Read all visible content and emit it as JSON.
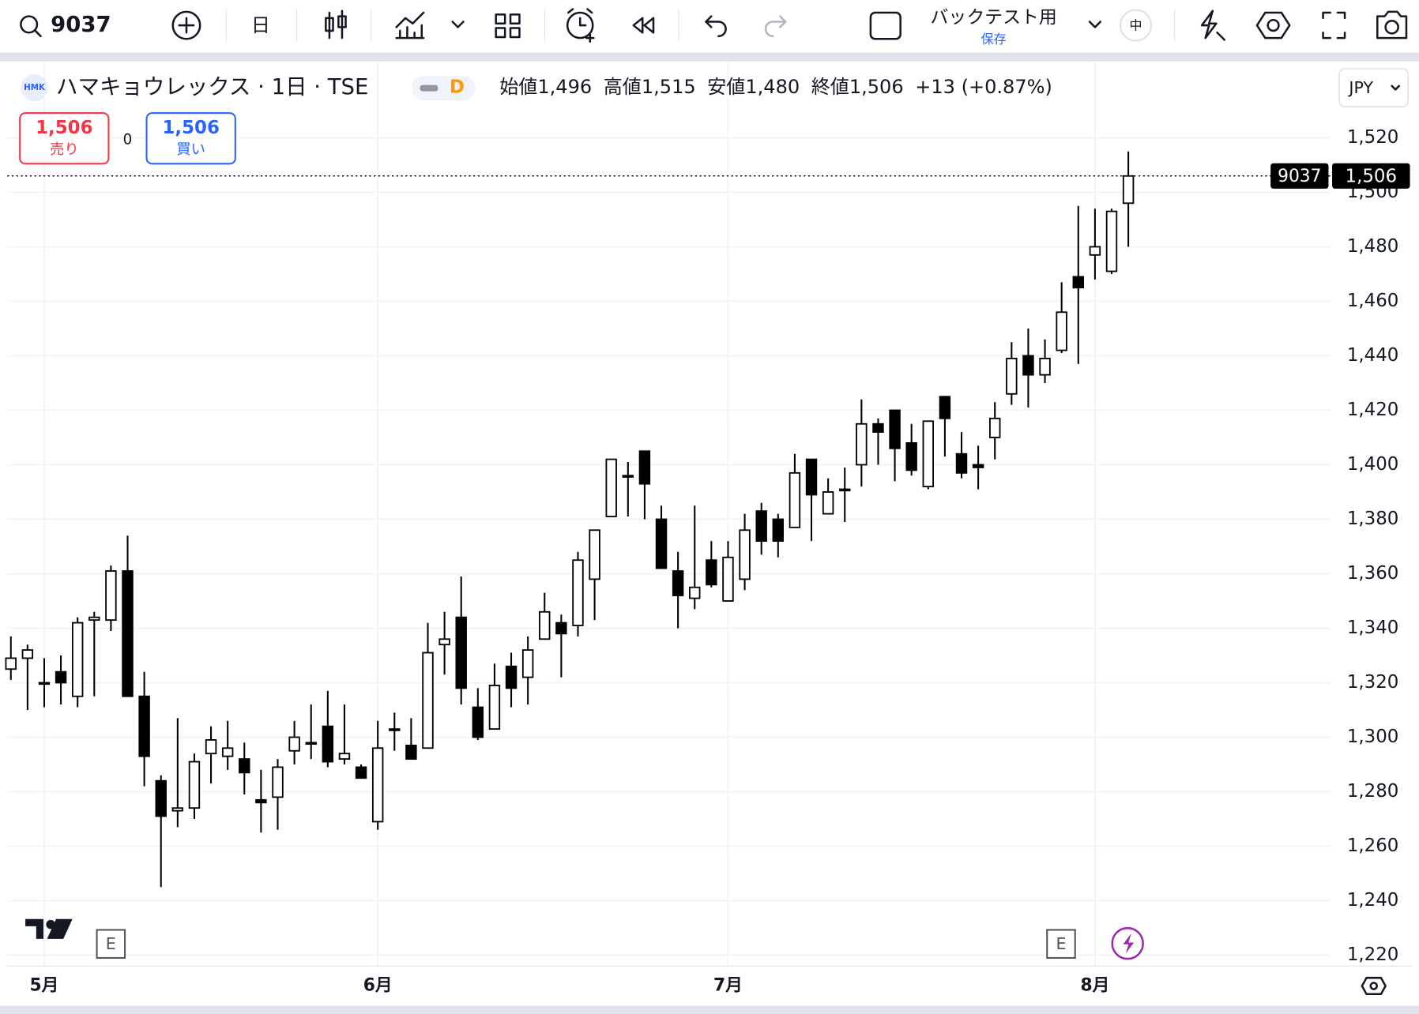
{
  "toolbar": {
    "symbol": "9037",
    "interval": "日",
    "layout_name": "バックテスト用",
    "layout_status": "保存",
    "badge": "中"
  },
  "legend": {
    "title": "ハマキョウレックス · 1日 · TSE",
    "flag": "D",
    "ohlc": [
      {
        "label": "始値",
        "value": "1,496"
      },
      {
        "label": "高値",
        "value": "1,515"
      },
      {
        "label": "安値",
        "value": "1,480"
      },
      {
        "label": "終値",
        "value": "1,506"
      }
    ],
    "change": "+13 (+0.87%)"
  },
  "trade": {
    "sell_price": "1,506",
    "sell_label": "売り",
    "spread": "0",
    "buy_price": "1,506",
    "buy_label": "買い"
  },
  "currency": "JPY",
  "events": [
    "E",
    "E"
  ],
  "chart_data": {
    "type": "candlestick",
    "categories": [
      null,
      null,
      "5月",
      null,
      null,
      null,
      null,
      null,
      null,
      null,
      null,
      null,
      null,
      null,
      null,
      null,
      null,
      null,
      null,
      null,
      null,
      null,
      "6月",
      null,
      null,
      null,
      null,
      null,
      null,
      null,
      null,
      null,
      null,
      null,
      null,
      null,
      null,
      null,
      null,
      null,
      null,
      null,
      null,
      "7月",
      null,
      null,
      null,
      null,
      null,
      null,
      null,
      null,
      null,
      null,
      null,
      null,
      null,
      null,
      null,
      null,
      null,
      null,
      null,
      null,
      null,
      "8月",
      null,
      null
    ],
    "series": [
      {
        "open": [
          1325,
          1329,
          1320,
          1324,
          1315,
          1343,
          1343,
          1361,
          1315,
          1284,
          1273,
          1274,
          1294,
          1293,
          1292,
          1277,
          1278,
          1295,
          1298,
          1304,
          1292,
          1289,
          1269,
          1303,
          1297,
          1296,
          1334,
          1344,
          1311,
          1303,
          1326,
          1322,
          1336,
          1342,
          1341,
          1358,
          1381,
          1396,
          1405,
          1380,
          1361,
          1351,
          1365,
          1350,
          1358,
          1383,
          1380,
          1377,
          1402,
          1382,
          1391,
          1400,
          1415,
          1420,
          1408,
          1392,
          1425,
          1404,
          1400,
          1410,
          1426,
          1440,
          1433,
          1442,
          1469,
          1477,
          1471,
          1496
        ],
        "high": [
          1337,
          1334,
          1329,
          1330,
          1344,
          1346,
          1363,
          1374,
          1324,
          1286,
          1307,
          1294,
          1304,
          1306,
          1298,
          1288,
          1292,
          1306,
          1312,
          1317,
          1312,
          1290,
          1306,
          1309,
          1307,
          1342,
          1346,
          1359,
          1318,
          1327,
          1331,
          1337,
          1353,
          1345,
          1368,
          1376,
          1402,
          1401,
          1405,
          1385,
          1368,
          1385,
          1372,
          1372,
          1382,
          1386,
          1382,
          1404,
          1402,
          1395,
          1399,
          1424,
          1417,
          1420,
          1415,
          1416,
          1425,
          1412,
          1407,
          1423,
          1445,
          1450,
          1446,
          1467,
          1495,
          1494,
          1494,
          1515
        ],
        "low": [
          1321,
          1310,
          1311,
          1312,
          1311,
          1315,
          1339,
          1315,
          1282,
          1245,
          1267,
          1270,
          1283,
          1288,
          1279,
          1265,
          1266,
          1290,
          1292,
          1289,
          1290,
          1285,
          1266,
          1295,
          1292,
          1296,
          1323,
          1312,
          1299,
          1303,
          1311,
          1312,
          1336,
          1322,
          1337,
          1343,
          1381,
          1381,
          1380,
          1362,
          1340,
          1347,
          1355,
          1350,
          1354,
          1367,
          1366,
          1377,
          1372,
          1382,
          1379,
          1392,
          1400,
          1394,
          1396,
          1391,
          1403,
          1395,
          1391,
          1402,
          1422,
          1421,
          1430,
          1441,
          1437,
          1468,
          1470,
          1480
        ],
        "close": [
          1329,
          1332,
          1320,
          1320,
          1342,
          1344,
          1361,
          1315,
          1293,
          1271,
          1274,
          1291,
          1299,
          1296,
          1287,
          1276,
          1289,
          1300,
          1298,
          1291,
          1294,
          1285,
          1296,
          1303,
          1292,
          1331,
          1336,
          1318,
          1300,
          1319,
          1318,
          1332,
          1346,
          1338,
          1365,
          1376,
          1402,
          1396,
          1393,
          1362,
          1352,
          1355,
          1356,
          1366,
          1376,
          1372,
          1372,
          1397,
          1389,
          1390,
          1391,
          1415,
          1412,
          1406,
          1398,
          1416,
          1417,
          1397,
          1399,
          1417,
          1439,
          1433,
          1439,
          1456,
          1465,
          1480,
          1493,
          1506
        ]
      }
    ],
    "up_color": "#ffffff",
    "down_color": "#000000",
    "border_color": "#000000",
    "ylim": [
      1216,
      1548
    ],
    "yticks": [
      {
        "value": 1220,
        "label": "1,220"
      },
      {
        "value": 1240,
        "label": "1,240"
      },
      {
        "value": 1260,
        "label": "1,260"
      },
      {
        "value": 1280,
        "label": "1,280"
      },
      {
        "value": 1300,
        "label": "1,300"
      },
      {
        "value": 1320,
        "label": "1,320"
      },
      {
        "value": 1340,
        "label": "1,340"
      },
      {
        "value": 1360,
        "label": "1,360"
      },
      {
        "value": 1380,
        "label": "1,380"
      },
      {
        "value": 1400,
        "label": "1,400"
      },
      {
        "value": 1420,
        "label": "1,420"
      },
      {
        "value": 1440,
        "label": "1,440"
      },
      {
        "value": 1460,
        "label": "1,460"
      },
      {
        "value": 1480,
        "label": "1,480"
      },
      {
        "value": 1500,
        "label": "1,500"
      },
      {
        "value": 1520,
        "label": "1,520"
      }
    ],
    "grid": true,
    "price_line": {
      "symbol": "9037",
      "label": "1,506"
    }
  }
}
